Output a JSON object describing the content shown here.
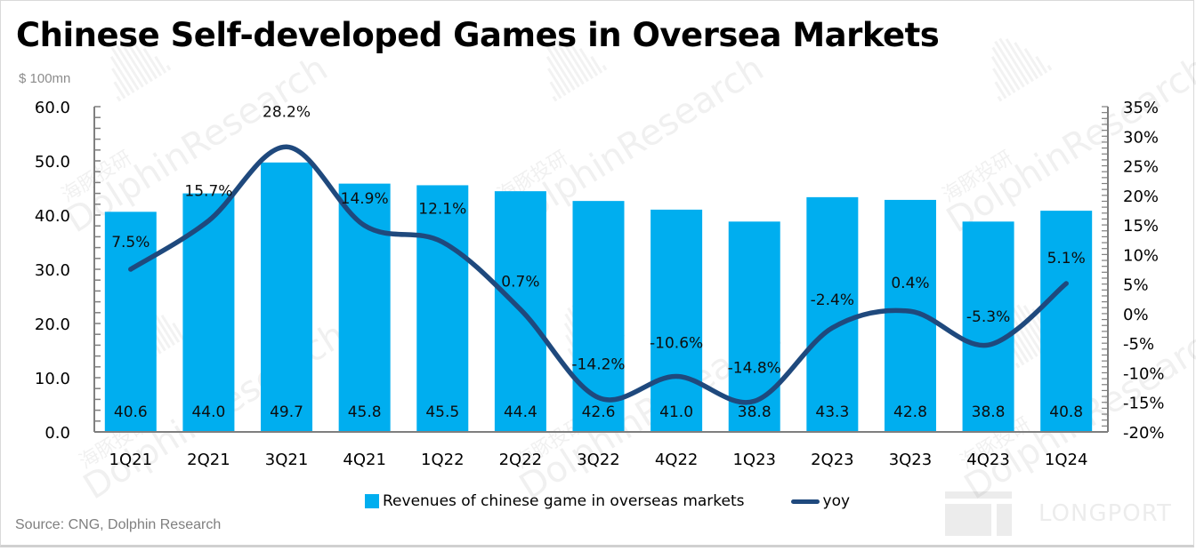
{
  "title": "Chinese Self-developed Games in Oversea Markets",
  "unit_label": "$ 100mn",
  "source": "Source: CNG, Dolphin Research",
  "watermark": {
    "cn": "海豚投研",
    "en": "DolphinResearch",
    "brand": "LONGPORT"
  },
  "colors": {
    "bar": "#00AEEF",
    "line": "#1F497D",
    "axis": "#7F7F7F"
  },
  "chart_data": {
    "type": "bar",
    "title": "Chinese Self-developed Games in Oversea Markets",
    "xlabel": "",
    "ylabel": "$ 100mn",
    "categories": [
      "1Q21",
      "2Q21",
      "3Q21",
      "4Q21",
      "1Q22",
      "2Q22",
      "3Q22",
      "4Q22",
      "1Q23",
      "2Q23",
      "3Q23",
      "4Q23",
      "1Q24"
    ],
    "series": [
      {
        "name": "Revenues of chinese game in overseas markets",
        "type": "bar",
        "axis": "left",
        "values": [
          40.6,
          44.0,
          49.7,
          45.8,
          45.5,
          44.4,
          42.6,
          41.0,
          38.8,
          43.3,
          42.8,
          38.8,
          40.8
        ],
        "labels": [
          "40.6",
          "44.0",
          "49.7",
          "45.8",
          "45.5",
          "44.4",
          "42.6",
          "41.0",
          "38.8",
          "43.3",
          "42.8",
          "38.8",
          "40.8"
        ]
      },
      {
        "name": "yoy",
        "type": "line",
        "smooth": true,
        "axis": "right",
        "values": [
          7.5,
          15.7,
          28.2,
          14.9,
          12.1,
          0.7,
          -14.2,
          -10.6,
          -14.8,
          -2.4,
          0.4,
          -5.3,
          5.1
        ],
        "labels": [
          "7.5%",
          "15.7%",
          "28.2%",
          "14.9%",
          "12.1%",
          "0.7%",
          "-14.2%",
          "-10.6%",
          "-14.8%",
          "-2.4%",
          "0.4%",
          "-5.3%",
          "5.1%"
        ]
      }
    ],
    "ylim": [
      0,
      60
    ],
    "y_ticks": [
      "0.0",
      "10.0",
      "20.0",
      "30.0",
      "40.0",
      "50.0",
      "60.0"
    ],
    "y2lim": [
      -20,
      35
    ],
    "y2_ticks": [
      "-20%",
      "-15%",
      "-10%",
      "-5%",
      "0%",
      "5%",
      "10%",
      "15%",
      "20%",
      "25%",
      "30%",
      "35%"
    ],
    "grid": false,
    "legend": {
      "position": "bottom",
      "entries": [
        "Revenues of chinese game in overseas markets",
        "yoy"
      ]
    }
  }
}
